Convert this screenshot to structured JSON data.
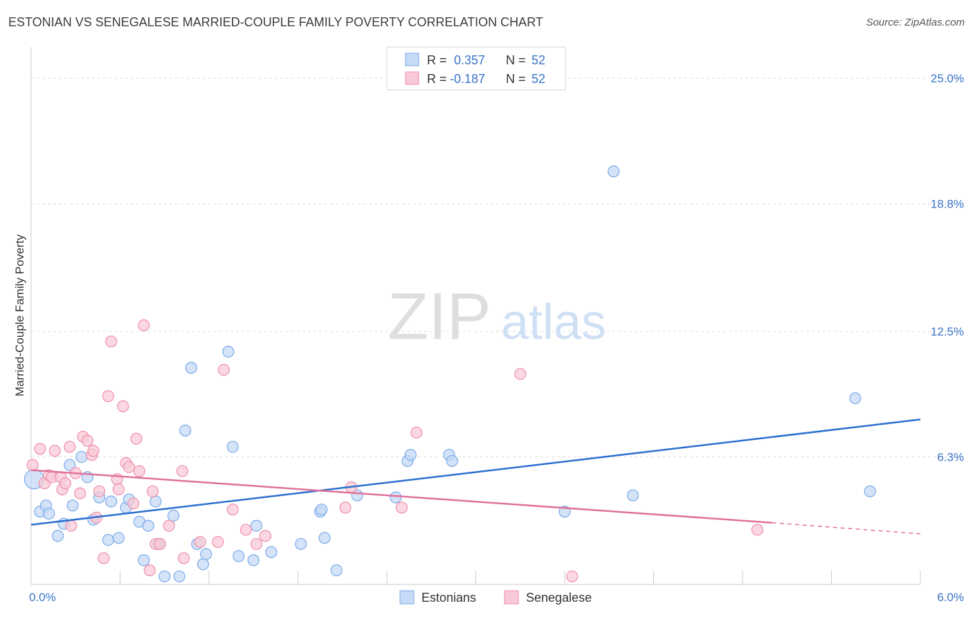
{
  "title": "ESTONIAN VS SENEGALESE MARRIED-COUPLE FAMILY POVERTY CORRELATION CHART",
  "source": "Source: ZipAtlas.com",
  "watermark": {
    "zip": "ZIP",
    "atlas": "atlas"
  },
  "colors": {
    "blue": "#7aaae8",
    "blue_fill": "#c5daf6",
    "blue_line": "#2a6fd1",
    "pink": "#ee8fab",
    "pink_fill": "#f8c9d7",
    "pink_line": "#e0719a",
    "grid": "#dcdcdc",
    "axis_text": "#3a74c9"
  },
  "legend": {
    "rows": [
      {
        "r_label": "R =",
        "r_value": "0.357",
        "n_label": "N =",
        "n_value": "52"
      },
      {
        "r_label": "R =",
        "r_value": "-0.187",
        "n_label": "N =",
        "n_value": "52"
      }
    ]
  },
  "chart_data": {
    "type": "scatter",
    "title": "ESTONIAN VS SENEGALESE MARRIED-COUPLE FAMILY POVERTY CORRELATION CHART",
    "xlabel": "",
    "ylabel": "Married-Couple Family Poverty",
    "xlim": [
      0,
      6.0
    ],
    "ylim": [
      0,
      26.2
    ],
    "x_tick_labels": [
      "0.0%",
      "6.0%"
    ],
    "y_ticks": [
      6.3,
      12.5,
      18.8,
      25.0
    ],
    "y_tick_labels": [
      "6.3%",
      "12.5%",
      "18.8%",
      "25.0%"
    ],
    "legend_position": "bottom",
    "series": [
      {
        "name": "Estonians",
        "r": 0.357,
        "n": 52,
        "trend": {
          "x0": 0.0,
          "y0": 2.95,
          "x1": 6.0,
          "y1": 8.15
        },
        "points": [
          [
            0.02,
            5.2
          ],
          [
            0.06,
            3.6
          ],
          [
            0.1,
            3.9
          ],
          [
            0.12,
            3.5
          ],
          [
            0.18,
            2.4
          ],
          [
            0.22,
            3.0
          ],
          [
            0.26,
            5.9
          ],
          [
            0.28,
            3.9
          ],
          [
            0.34,
            6.3
          ],
          [
            0.38,
            5.3
          ],
          [
            0.42,
            3.2
          ],
          [
            0.46,
            4.3
          ],
          [
            0.52,
            2.2
          ],
          [
            0.54,
            4.1
          ],
          [
            0.59,
            2.3
          ],
          [
            0.64,
            3.8
          ],
          [
            0.66,
            4.2
          ],
          [
            0.73,
            3.1
          ],
          [
            0.76,
            1.2
          ],
          [
            0.79,
            2.9
          ],
          [
            0.84,
            4.1
          ],
          [
            0.86,
            2.0
          ],
          [
            0.9,
            0.4
          ],
          [
            0.96,
            3.4
          ],
          [
            1.0,
            0.4
          ],
          [
            1.04,
            7.6
          ],
          [
            1.08,
            10.7
          ],
          [
            1.12,
            2.0
          ],
          [
            1.16,
            1.0
          ],
          [
            1.18,
            1.5
          ],
          [
            1.33,
            11.5
          ],
          [
            1.36,
            6.8
          ],
          [
            1.4,
            1.4
          ],
          [
            1.5,
            1.2
          ],
          [
            1.52,
            2.9
          ],
          [
            1.62,
            1.6
          ],
          [
            1.82,
            2.0
          ],
          [
            1.95,
            3.6
          ],
          [
            1.96,
            3.7
          ],
          [
            1.98,
            2.3
          ],
          [
            2.06,
            0.7
          ],
          [
            2.2,
            4.4
          ],
          [
            2.46,
            4.3
          ],
          [
            2.54,
            6.1
          ],
          [
            2.56,
            6.4
          ],
          [
            2.82,
            6.4
          ],
          [
            2.84,
            6.1
          ],
          [
            3.6,
            3.6
          ],
          [
            3.93,
            20.4
          ],
          [
            4.06,
            4.4
          ],
          [
            5.56,
            9.2
          ],
          [
            5.66,
            4.6
          ]
        ]
      },
      {
        "name": "Senegalese",
        "r": -0.187,
        "n": 52,
        "trend": {
          "x0": 0.0,
          "y0": 5.65,
          "x1": 5.0,
          "y1": 3.05
        },
        "trend_dashed": {
          "x0": 5.0,
          "y0": 3.05,
          "x1": 6.0,
          "y1": 2.5
        },
        "points": [
          [
            0.01,
            5.9
          ],
          [
            0.06,
            6.7
          ],
          [
            0.09,
            5.0
          ],
          [
            0.12,
            5.4
          ],
          [
            0.14,
            5.3
          ],
          [
            0.16,
            6.6
          ],
          [
            0.2,
            5.3
          ],
          [
            0.21,
            4.7
          ],
          [
            0.23,
            5.0
          ],
          [
            0.26,
            6.8
          ],
          [
            0.27,
            2.9
          ],
          [
            0.3,
            5.5
          ],
          [
            0.33,
            4.5
          ],
          [
            0.35,
            7.3
          ],
          [
            0.38,
            7.1
          ],
          [
            0.41,
            6.4
          ],
          [
            0.42,
            6.6
          ],
          [
            0.44,
            3.3
          ],
          [
            0.46,
            4.6
          ],
          [
            0.49,
            1.3
          ],
          [
            0.52,
            9.3
          ],
          [
            0.54,
            12.0
          ],
          [
            0.58,
            5.2
          ],
          [
            0.59,
            4.7
          ],
          [
            0.62,
            8.8
          ],
          [
            0.64,
            6.0
          ],
          [
            0.66,
            5.8
          ],
          [
            0.69,
            4.0
          ],
          [
            0.71,
            7.2
          ],
          [
            0.73,
            5.6
          ],
          [
            0.76,
            12.8
          ],
          [
            0.8,
            0.7
          ],
          [
            0.82,
            4.6
          ],
          [
            0.84,
            2.0
          ],
          [
            0.87,
            2.0
          ],
          [
            0.93,
            2.9
          ],
          [
            1.02,
            5.6
          ],
          [
            1.03,
            1.3
          ],
          [
            1.14,
            2.1
          ],
          [
            1.26,
            2.1
          ],
          [
            1.3,
            10.6
          ],
          [
            1.36,
            3.7
          ],
          [
            1.45,
            2.7
          ],
          [
            1.52,
            2.0
          ],
          [
            1.58,
            2.4
          ],
          [
            2.12,
            3.8
          ],
          [
            2.16,
            4.8
          ],
          [
            2.5,
            3.8
          ],
          [
            2.6,
            7.5
          ],
          [
            3.3,
            10.4
          ],
          [
            3.65,
            0.4
          ],
          [
            4.9,
            2.7
          ]
        ]
      }
    ]
  }
}
